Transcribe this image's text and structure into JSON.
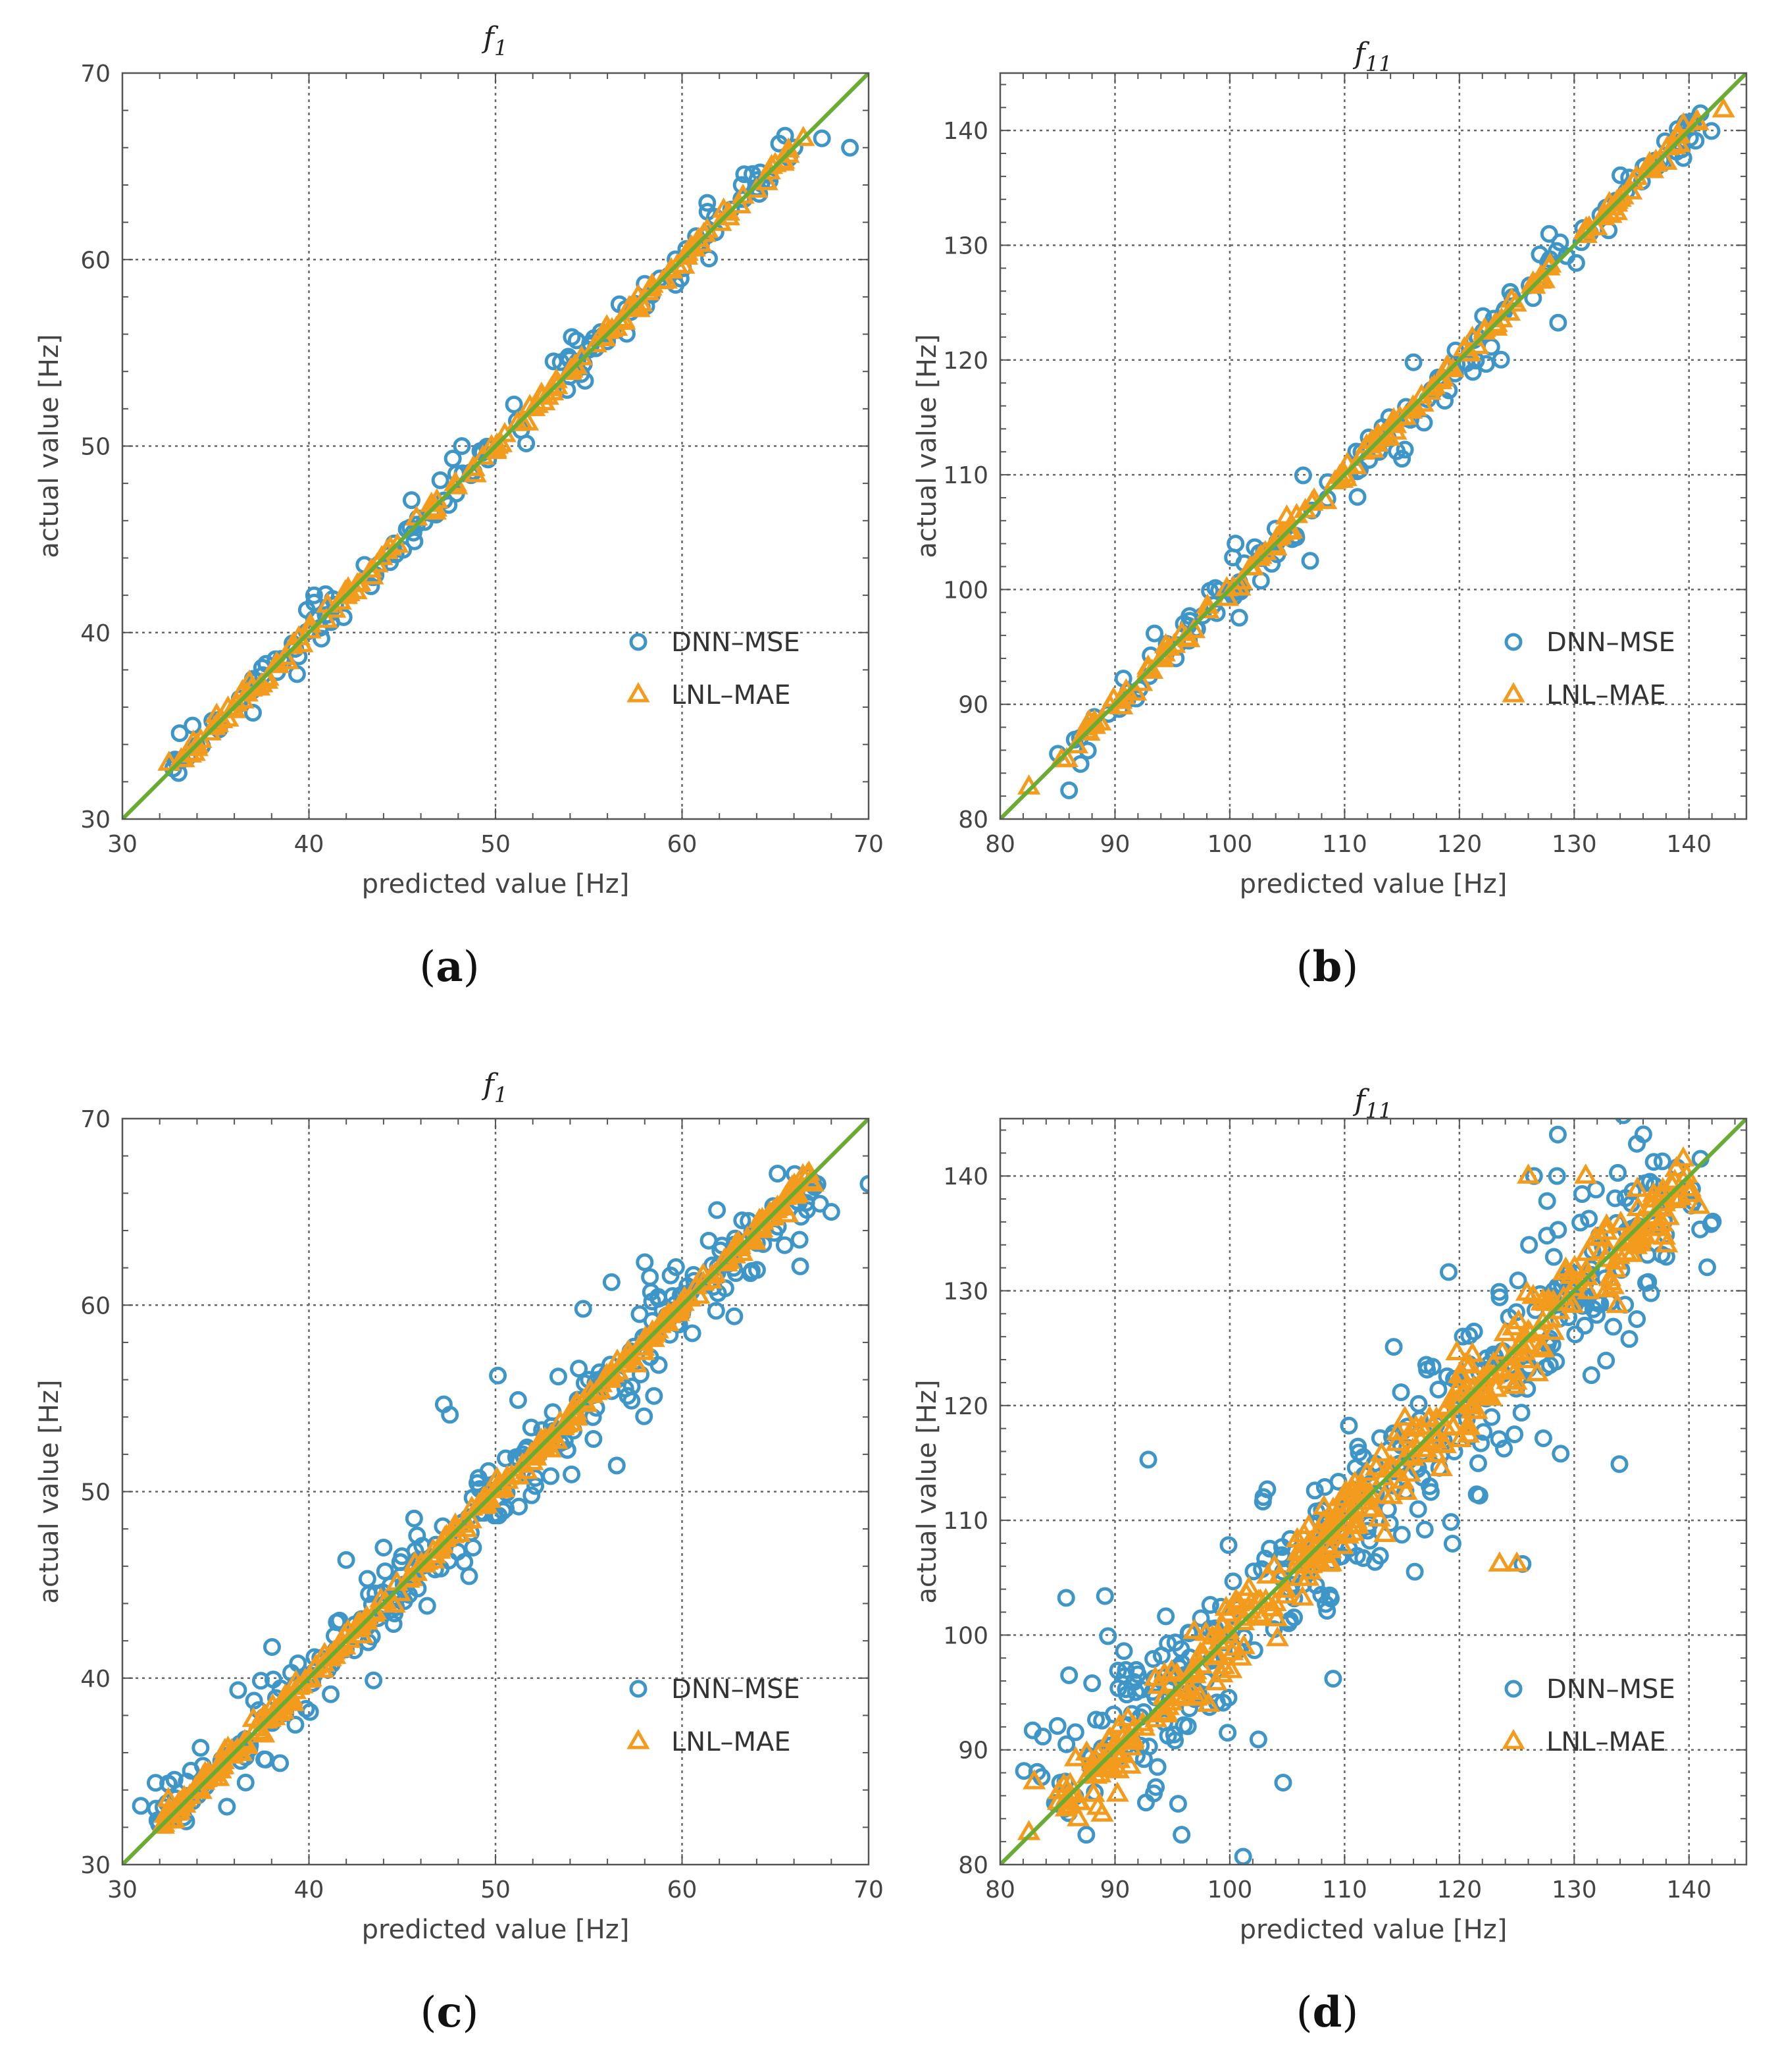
{
  "figure_captions": [
    "(a)",
    "(b)",
    "(c)",
    "(d)"
  ],
  "legend": {
    "dnn": "DNN–MSE",
    "lnl": "LNL–MAE"
  },
  "colors": {
    "dnn": "#3e96c8",
    "lnl": "#f29b1d",
    "diagonal": "#6aab33",
    "grid": "#666666"
  },
  "chart_data": [
    {
      "id": "a",
      "type": "scatter",
      "caption": "(a)",
      "caption_letter": "a",
      "title": "f",
      "title_subscript": "1",
      "xlabel": "predicted value [Hz]",
      "ylabel": "actual value [Hz]",
      "xlim": [
        30,
        70
      ],
      "ylim": [
        30,
        70
      ],
      "xticks": [
        30,
        40,
        50,
        60,
        70
      ],
      "yticks": [
        30,
        40,
        50,
        60,
        70
      ],
      "grid": true,
      "legend_position": "lower-right",
      "reference_line": "y = x",
      "noise": {
        "dnn": 0.55,
        "lnl": 0.2,
        "dnn_outlier_rate": 0.12,
        "dnn_outlier_scale": 1.6
      },
      "n_points": 150,
      "x_range": [
        32.5,
        66.5
      ],
      "series": [
        {
          "name": "DNN–MSE",
          "marker": "circle",
          "extra_points": [
            [
              67.5,
              66.5
            ],
            [
              69,
              66
            ],
            [
              63.2,
              64
            ],
            [
              58,
              58.7
            ],
            [
              48.2,
              50
            ],
            [
              53.5,
              54.5
            ],
            [
              54.8,
              53.5
            ],
            [
              37,
              35.7
            ],
            [
              45.5,
              47.1
            ]
          ]
        },
        {
          "name": "LNL–MAE",
          "marker": "triangle",
          "extra_points": [
            [
              32.5,
              33
            ],
            [
              62.5,
              62.5
            ],
            [
              66.5,
              66.5
            ],
            [
              64.8,
              65
            ]
          ]
        }
      ]
    },
    {
      "id": "b",
      "type": "scatter",
      "caption": "(b)",
      "caption_letter": "b",
      "title": "f",
      "title_subscript": "11",
      "xlabel": "predicted value [Hz]",
      "ylabel": "actual value [Hz]",
      "xlim": [
        80,
        145
      ],
      "ylim": [
        80,
        145
      ],
      "xticks": [
        80,
        90,
        100,
        110,
        120,
        130,
        140
      ],
      "yticks": [
        80,
        90,
        100,
        110,
        120,
        130,
        140
      ],
      "grid": true,
      "legend_position": "lower-right",
      "reference_line": "y = x",
      "noise": {
        "dnn": 0.9,
        "lnl": 0.35,
        "dnn_outlier_rate": 0.12,
        "dnn_outlier_scale": 2.6
      },
      "n_points": 150,
      "x_range": [
        85,
        141
      ],
      "series": [
        {
          "name": "DNN–MSE",
          "marker": "circle",
          "extra_points": [
            [
              86,
              82.5
            ],
            [
              87,
              84.8
            ],
            [
              141,
              141.5
            ],
            [
              133,
              131.3
            ],
            [
              116,
              119.8
            ],
            [
              115,
              111.4
            ],
            [
              107,
              102.5
            ],
            [
              100.5,
              104
            ],
            [
              127,
              129.2
            ]
          ]
        },
        {
          "name": "LNL–MAE",
          "marker": "triangle",
          "extra_points": [
            [
              82.5,
              82.8
            ],
            [
              85.8,
              85.2
            ],
            [
              143,
              141.8
            ],
            [
              139.5,
              140.5
            ]
          ]
        }
      ]
    },
    {
      "id": "c",
      "type": "scatter",
      "caption": "(c)",
      "caption_letter": "c",
      "title": "f",
      "title_subscript": "1",
      "xlabel": "predicted value [Hz]",
      "ylabel": "actual value [Hz]",
      "xlim": [
        30,
        70
      ],
      "ylim": [
        30,
        70
      ],
      "xticks": [
        30,
        40,
        50,
        60,
        70
      ],
      "yticks": [
        30,
        40,
        50,
        60,
        70
      ],
      "grid": true,
      "legend_position": "lower-right",
      "reference_line": "y = x",
      "noise": {
        "dnn": 1.2,
        "lnl": 0.3,
        "dnn_outlier_rate": 0.18,
        "dnn_outlier_scale": 2.2
      },
      "n_points": 300,
      "x_range": [
        32,
        67
      ],
      "series": [
        {
          "name": "DNN–MSE",
          "marker": "circle",
          "extra_points": [
            [
              31.8,
              33
            ],
            [
              70,
              66.5
            ],
            [
              68,
              65
            ],
            [
              58,
              62.3
            ],
            [
              56.5,
              51.4
            ],
            [
              54.7,
              59.8
            ],
            [
              62.8,
              59.4
            ],
            [
              44,
              47
            ],
            [
              47.5,
              46.3
            ]
          ]
        },
        {
          "name": "LNL–MAE",
          "marker": "triangle",
          "extra_points": [
            [
              32.5,
              33
            ],
            [
              67,
              66.5
            ],
            [
              64.2,
              64
            ]
          ]
        }
      ]
    },
    {
      "id": "d",
      "type": "scatter",
      "caption": "(d)",
      "caption_letter": "d",
      "title": "f",
      "title_subscript": "11",
      "xlabel": "predicted value [Hz]",
      "ylabel": "actual value [Hz]",
      "xlim": [
        80,
        145
      ],
      "ylim": [
        80,
        145
      ],
      "xticks": [
        80,
        90,
        100,
        110,
        120,
        130,
        140
      ],
      "yticks": [
        80,
        90,
        100,
        110,
        120,
        130,
        140
      ],
      "grid": true,
      "legend_position": "lower-right",
      "reference_line": "y = x",
      "noise": {
        "dnn": 4.2,
        "lnl": 1.8,
        "dnn_outlier_rate": 0.12,
        "dnn_outlier_scale": 2.2
      },
      "n_points": 380,
      "x_range": [
        85,
        140
      ],
      "series": [
        {
          "name": "DNN–MSE",
          "marker": "circle",
          "extra_points": [
            [
              85,
              85.3
            ],
            [
              87.5,
              82.6
            ],
            [
              95.8,
              82.6
            ],
            [
              86,
              96.5
            ],
            [
              141,
              141.5
            ],
            [
              134.8,
              125.8
            ],
            [
              126.5,
              140
            ],
            [
              128.5,
              140
            ],
            [
              125.5,
              106.2
            ],
            [
              109,
              96.2
            ],
            [
              95.5,
              85.3
            ]
          ]
        },
        {
          "name": "LNL–MAE",
          "marker": "triangle",
          "extra_points": [
            [
              82.5,
              82.8
            ],
            [
              126,
              140
            ],
            [
              131,
              140
            ],
            [
              123.5,
              106.2
            ],
            [
              125,
              106.2
            ],
            [
              88.5,
              85
            ],
            [
              139.5,
              141.5
            ]
          ]
        }
      ]
    }
  ]
}
